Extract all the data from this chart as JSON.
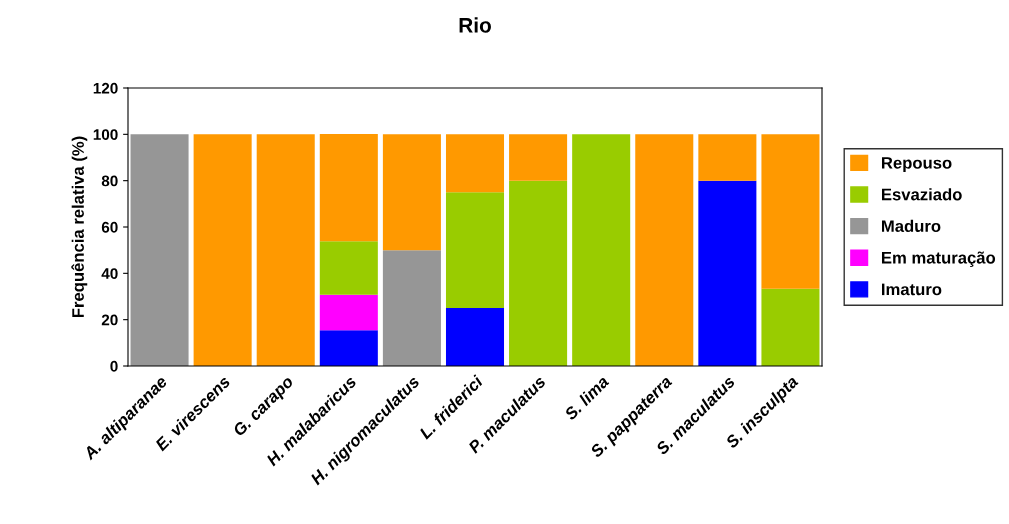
{
  "chart_data": {
    "type": "bar",
    "title": "Rio",
    "ylabel": "Frequência relativa (%)",
    "stacked": true,
    "categories": [
      "A. altiparanae",
      "E. virescens",
      "G. carapo",
      "H. malabaricus",
      "H. nigromaculatus",
      "L. friderici",
      "P. maculatus",
      "S. lima",
      "S. pappaterra",
      "S. maculatus",
      "S. insculpta"
    ],
    "series": [
      {
        "name": "Imaturo",
        "color": "#0000ff",
        "values": [
          0,
          0,
          0,
          15.4,
          0,
          25,
          0,
          0,
          0,
          80,
          0
        ]
      },
      {
        "name": "Em maturação",
        "color": "#ff00ff",
        "values": [
          0,
          0,
          0,
          15.4,
          0,
          0,
          0,
          0,
          0,
          0,
          0
        ]
      },
      {
        "name": "Maduro",
        "color": "#969696",
        "values": [
          100,
          0,
          0,
          0,
          50,
          0,
          0,
          0,
          0,
          0,
          0
        ]
      },
      {
        "name": "Esvaziado",
        "color": "#99cc00",
        "values": [
          0,
          0,
          0,
          23.1,
          0,
          50,
          80,
          100,
          0,
          0,
          33.3
        ]
      },
      {
        "name": "Repouso",
        "color": "#ff9900",
        "values": [
          0,
          100,
          100,
          46.2,
          50,
          25,
          20,
          0,
          100,
          20,
          66.7
        ]
      }
    ],
    "ylim": [
      0,
      120
    ],
    "yticks": [
      0,
      20,
      40,
      60,
      80,
      100,
      120
    ],
    "legend": "right",
    "grid": false
  }
}
